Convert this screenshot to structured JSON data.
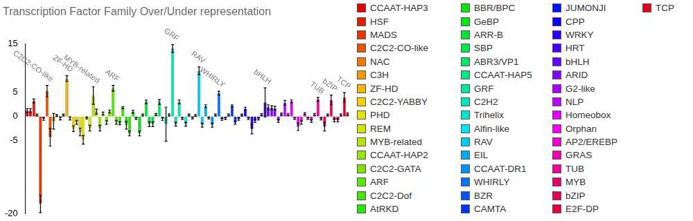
{
  "chart_data": {
    "type": "bar",
    "title": "Transcription Factor Family Over/Under representation",
    "categories": [
      "CCAAT-HAP3",
      "HSF",
      "MADS",
      "C2C2-CO-like",
      "NAC",
      "C3H",
      "ZF-HD",
      "C2C2-YABBY",
      "PHD",
      "REM",
      "MYB-related",
      "CCAAT-HAP2",
      "C2C2-GATA",
      "ARF",
      "C2C2-Dof",
      "AtRKD",
      "BBR/BPC",
      "GeBP",
      "ARR-B",
      "SBP",
      "ABR3/VP1",
      "CCAAT-HAP5",
      "GRF",
      "C2H2",
      "Trihelix",
      "Alfin-like",
      "RAV",
      "EIL",
      "CCAAT-DR1",
      "WHIRLY",
      "BZR",
      "CAMTA",
      "JUMONJI",
      "CPP",
      "WRKY",
      "HRT",
      "bHLH",
      "ARID",
      "G2-like",
      "NLP",
      "Homeobox",
      "Orphan",
      "AP2/EREBP",
      "GRAS",
      "TUB",
      "MYB",
      "bZIP",
      "E2F-DP",
      "TCP"
    ],
    "colors": [
      "hsl(0,100%,45%)",
      "hsl(7,100%,45%)",
      "hsl(15,100%,45%)",
      "hsl(22,100%,45%)",
      "hsl(29,100%,48%)",
      "hsl(37,100%,48%)",
      "hsl(44,100%,48%)",
      "hsl(51,100%,48%)",
      "hsl(59,100%,45%)",
      "hsl(66,100%,45%)",
      "hsl(73,100%,45%)",
      "hsl(81,100%,45%)",
      "hsl(88,100%,45%)",
      "hsl(96,100%,45%)",
      "hsl(103,100%,45%)",
      "hsl(110,100%,45%)",
      "hsl(118,100%,45%)",
      "hsl(125,100%,45%)",
      "hsl(132,100%,45%)",
      "hsl(140,100%,45%)",
      "hsl(147,100%,45%)",
      "hsl(154,100%,45%)",
      "hsl(162,100%,45%)",
      "hsl(169,100%,45%)",
      "hsl(176,100%,45%)",
      "hsl(184,100%,48%)",
      "hsl(191,100%,48%)",
      "hsl(198,100%,48%)",
      "hsl(206,100%,50%)",
      "hsl(213,100%,50%)",
      "hsl(220,100%,50%)",
      "hsl(228,100%,50%)",
      "hsl(235,100%,50%)",
      "hsl(242,100%,50%)",
      "hsl(250,100%,50%)",
      "hsl(257,100%,50%)",
      "hsl(264,100%,50%)",
      "hsl(272,100%,50%)",
      "hsl(279,100%,50%)",
      "hsl(286,100%,50%)",
      "hsl(294,100%,50%)",
      "hsl(301,100%,48%)",
      "hsl(309,100%,48%)",
      "hsl(316,100%,48%)",
      "hsl(323,100%,48%)",
      "hsl(331,100%,45%)",
      "hsl(338,100%,45%)",
      "hsl(345,100%,45%)",
      "hsl(353,100%,45%)"
    ],
    "series": [
      {
        "values": [
          1.2,
          3.2,
          -18,
          5.2,
          -1.0,
          -0.4,
          7.8,
          -2.5,
          -3.2,
          -0.3,
          4.3,
          -2.4,
          -1.2,
          5.8,
          -1.4,
          -1.8,
          1.0,
          -3.5,
          3.0,
          -1.6,
          3.0,
          -1.6,
          14,
          3.0,
          -1.6,
          -0.3,
          9.4,
          2.1,
          -1.8,
          4.8,
          -0.4,
          2.2,
          -0.6,
          1.6,
          -2.6,
          -0.5,
          2.9,
          1.8,
          -0.9,
          2.8,
          3.1,
          -2.1,
          0.6,
          -0.9,
          3.5,
          -2.1,
          3.4,
          -0.8,
          3.9
        ],
        "errors": [
          0.4,
          0.4,
          1.8,
          1.2,
          1.6,
          0.3,
          0.6,
          0.6,
          0.8,
          0.2,
          1.8,
          0.6,
          0.4,
          0.6,
          0.3,
          0.8,
          0.3,
          0.5,
          0.4,
          0.5,
          0.5,
          3.5,
          0.8,
          0.4,
          0.4,
          0.2,
          0.8,
          0.3,
          0.4,
          0.4,
          0.2,
          0.2,
          0.2,
          0.3,
          1.0,
          0.2,
          3.0,
          0.4,
          0.3,
          0.5,
          0.3,
          0.8,
          0.2,
          0.3,
          0.4,
          0.9,
          1.0,
          0.3,
          1.0
        ]
      },
      {
        "values": [
          1.2,
          0.3,
          -0.5,
          -4.3,
          0.2,
          0.3,
          -0.4,
          -1.2,
          -4.8,
          -2.4,
          1.0,
          0.6,
          1.0,
          -1.2,
          1.8,
          -3.5,
          -0.4,
          0.3,
          -1.6,
          0.4,
          -0.5,
          0.3,
          -1.6,
          -0.4,
          0.3,
          0.2,
          -1.8,
          -0.3,
          0.3,
          -0.6,
          0.3,
          -1.3,
          0.3,
          -0.4,
          -0.9,
          0.4,
          1.9,
          1.7,
          0.5,
          0.4,
          -0.4,
          -1.2,
          -0.4,
          0.4,
          -0.5,
          0.3,
          -0.8,
          0.3,
          0.5
        ],
        "errors": [
          0.4,
          0.2,
          0.3,
          1.8,
          0.2,
          0.2,
          0.3,
          0.4,
          0.9,
          0.6,
          0.5,
          0.3,
          0.3,
          0.4,
          0.2,
          0.5,
          0.2,
          0.2,
          0.5,
          0.2,
          0.3,
          0.2,
          0.4,
          0.2,
          0.2,
          0.2,
          0.4,
          0.2,
          0.2,
          0.2,
          0.2,
          0.3,
          0.2,
          0.2,
          0.3,
          0.2,
          0.5,
          0.4,
          0.2,
          0.2,
          0.2,
          0.4,
          0.2,
          0.2,
          0.2,
          0.2,
          0.3,
          0.2,
          0.2
        ]
      }
    ],
    "annotations": [
      "C2C2-CO-like",
      "ZF-HD",
      "MYB-related",
      "ARF",
      "GRF",
      "RAV",
      "WHIRLY",
      "bHLH",
      "TUB",
      "bZIP",
      "TCP"
    ],
    "ylim": [
      -20,
      15
    ],
    "yticks": [
      -20,
      -5,
      0,
      5,
      15
    ],
    "grid": false,
    "legend": "right",
    "tick_labels": "y"
  }
}
